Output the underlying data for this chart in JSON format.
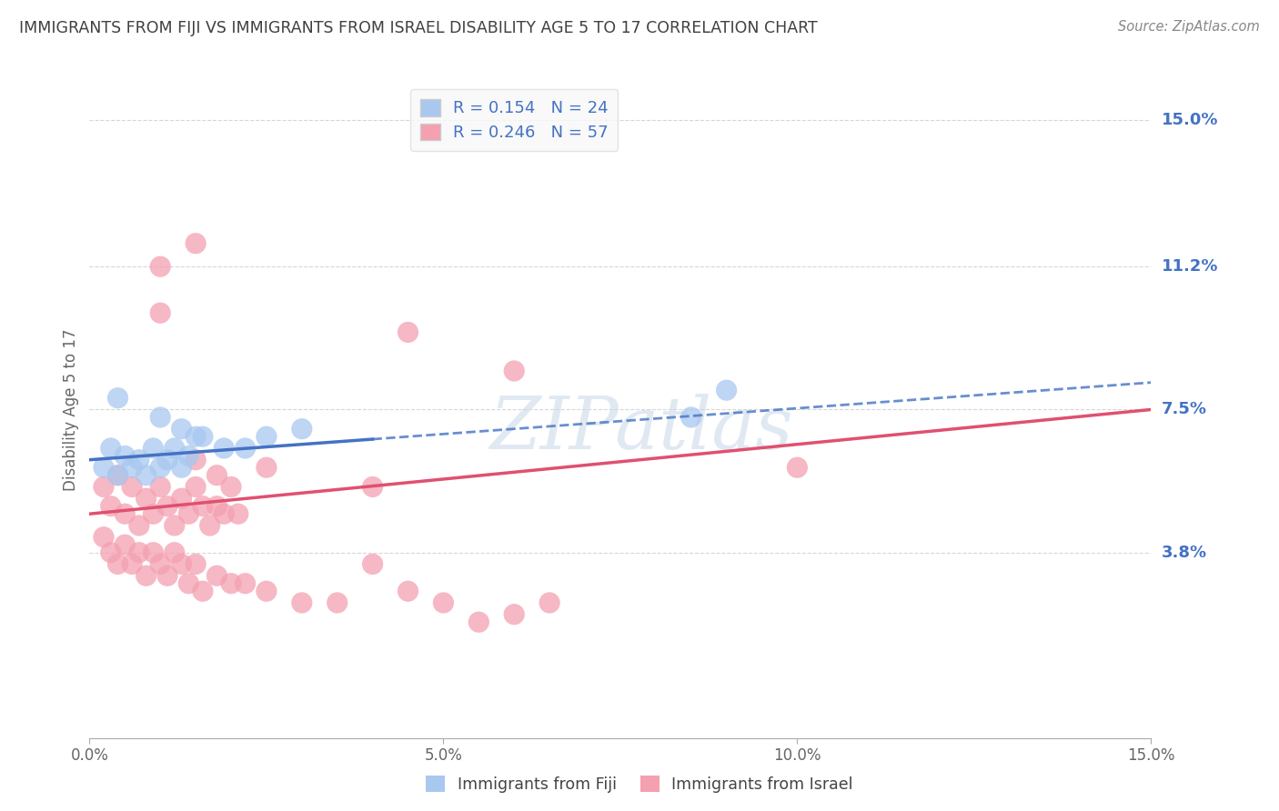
{
  "title": "IMMIGRANTS FROM FIJI VS IMMIGRANTS FROM ISRAEL DISABILITY AGE 5 TO 17 CORRELATION CHART",
  "source": "Source: ZipAtlas.com",
  "ylabel": "Disability Age 5 to 17",
  "xlim": [
    0.0,
    0.15
  ],
  "ylim": [
    -0.01,
    0.16
  ],
  "yticks": [
    0.038,
    0.075,
    0.112,
    0.15
  ],
  "ytick_labels": [
    "3.8%",
    "7.5%",
    "11.2%",
    "15.0%"
  ],
  "xticks": [
    0.0,
    0.05,
    0.1,
    0.15
  ],
  "xtick_labels": [
    "0.0%",
    "5.0%",
    "10.0%",
    "15.0%"
  ],
  "fiji_color": "#A8C8F0",
  "fiji_color_dark": "#4472C4",
  "israel_color": "#F4A0B0",
  "israel_color_dark": "#E05070",
  "fiji_R": 0.154,
  "fiji_N": 24,
  "israel_R": 0.246,
  "israel_N": 57,
  "fiji_scatter": [
    [
      0.002,
      0.06
    ],
    [
      0.003,
      0.065
    ],
    [
      0.004,
      0.058
    ],
    [
      0.005,
      0.063
    ],
    [
      0.006,
      0.06
    ],
    [
      0.007,
      0.062
    ],
    [
      0.008,
      0.058
    ],
    [
      0.009,
      0.065
    ],
    [
      0.01,
      0.06
    ],
    [
      0.011,
      0.062
    ],
    [
      0.012,
      0.065
    ],
    [
      0.013,
      0.06
    ],
    [
      0.014,
      0.063
    ],
    [
      0.015,
      0.068
    ],
    [
      0.004,
      0.078
    ],
    [
      0.01,
      0.073
    ],
    [
      0.013,
      0.07
    ],
    [
      0.016,
      0.068
    ],
    [
      0.019,
      0.065
    ],
    [
      0.022,
      0.065
    ],
    [
      0.025,
      0.068
    ],
    [
      0.03,
      0.07
    ],
    [
      0.085,
      0.073
    ],
    [
      0.09,
      0.08
    ]
  ],
  "israel_scatter": [
    [
      0.002,
      0.055
    ],
    [
      0.003,
      0.05
    ],
    [
      0.004,
      0.058
    ],
    [
      0.005,
      0.048
    ],
    [
      0.006,
      0.055
    ],
    [
      0.007,
      0.045
    ],
    [
      0.008,
      0.052
    ],
    [
      0.009,
      0.048
    ],
    [
      0.01,
      0.055
    ],
    [
      0.011,
      0.05
    ],
    [
      0.012,
      0.045
    ],
    [
      0.013,
      0.052
    ],
    [
      0.014,
      0.048
    ],
    [
      0.015,
      0.055
    ],
    [
      0.016,
      0.05
    ],
    [
      0.017,
      0.045
    ],
    [
      0.018,
      0.05
    ],
    [
      0.019,
      0.048
    ],
    [
      0.02,
      0.055
    ],
    [
      0.021,
      0.048
    ],
    [
      0.002,
      0.042
    ],
    [
      0.003,
      0.038
    ],
    [
      0.004,
      0.035
    ],
    [
      0.005,
      0.04
    ],
    [
      0.006,
      0.035
    ],
    [
      0.007,
      0.038
    ],
    [
      0.008,
      0.032
    ],
    [
      0.009,
      0.038
    ],
    [
      0.01,
      0.035
    ],
    [
      0.011,
      0.032
    ],
    [
      0.012,
      0.038
    ],
    [
      0.013,
      0.035
    ],
    [
      0.014,
      0.03
    ],
    [
      0.015,
      0.035
    ],
    [
      0.016,
      0.028
    ],
    [
      0.018,
      0.032
    ],
    [
      0.02,
      0.03
    ],
    [
      0.022,
      0.03
    ],
    [
      0.025,
      0.028
    ],
    [
      0.03,
      0.025
    ],
    [
      0.035,
      0.025
    ],
    [
      0.04,
      0.035
    ],
    [
      0.045,
      0.028
    ],
    [
      0.05,
      0.025
    ],
    [
      0.055,
      0.02
    ],
    [
      0.06,
      0.022
    ],
    [
      0.065,
      0.025
    ],
    [
      0.015,
      0.062
    ],
    [
      0.018,
      0.058
    ],
    [
      0.025,
      0.06
    ],
    [
      0.04,
      0.055
    ],
    [
      0.01,
      0.112
    ],
    [
      0.015,
      0.118
    ],
    [
      0.01,
      0.1
    ],
    [
      0.045,
      0.095
    ],
    [
      0.06,
      0.085
    ],
    [
      0.1,
      0.06
    ]
  ],
  "watermark_text": "ZIPatlas",
  "background_color": "#FFFFFF",
  "grid_color": "#CCCCCC",
  "axis_label_color": "#4472C4",
  "title_color": "#404040",
  "legend_box_color": "#F8F8F8"
}
